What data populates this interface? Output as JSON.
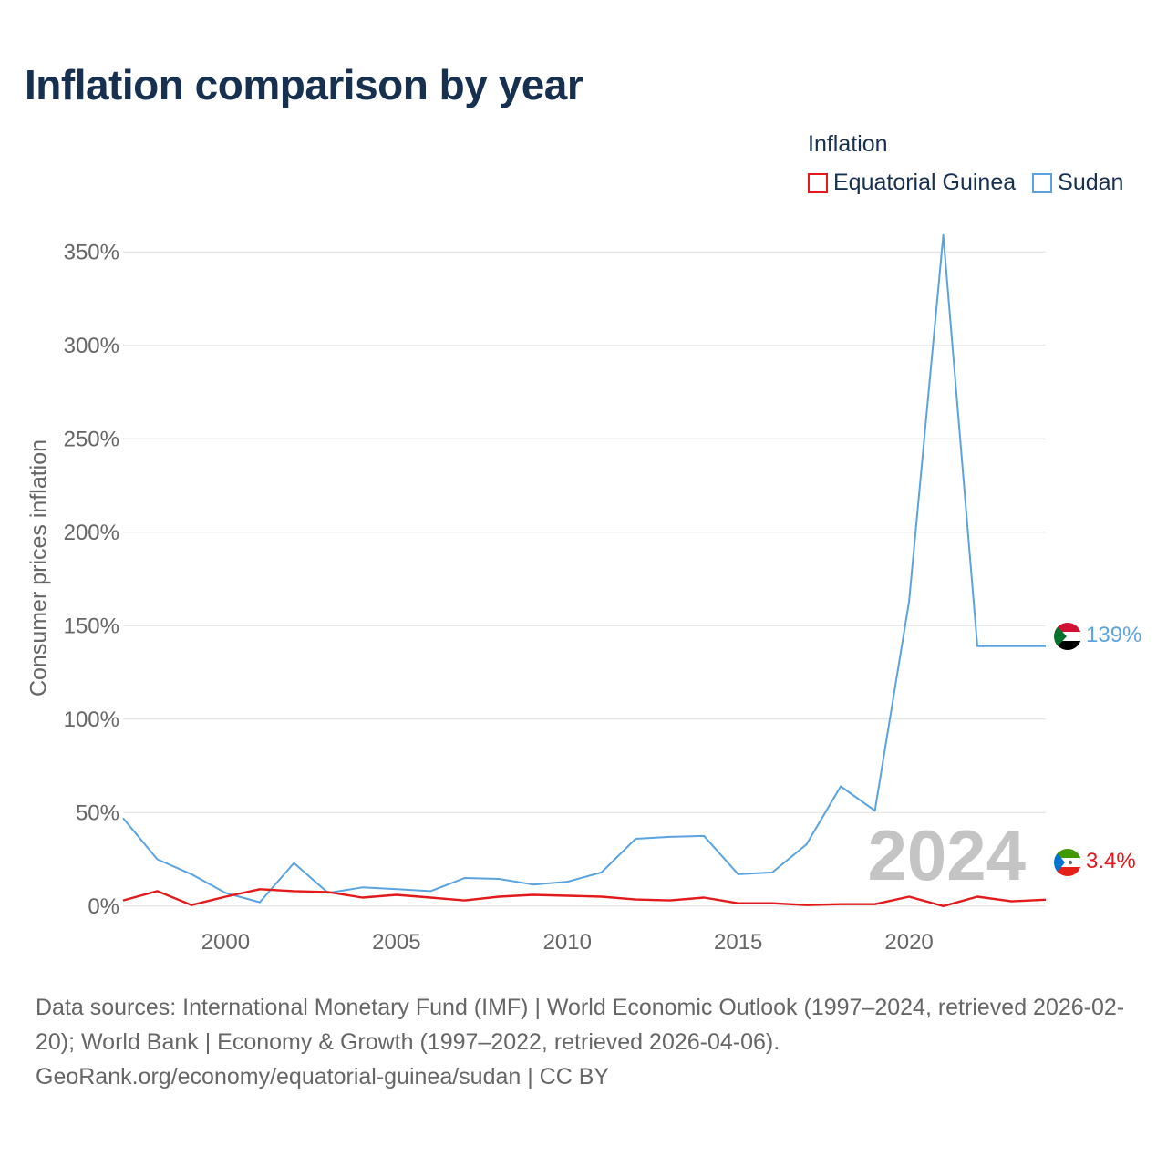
{
  "title": "Inflation comparison by year",
  "legend": {
    "title": "Inflation",
    "items": [
      {
        "label": "Equatorial Guinea",
        "color": "#e31a1c"
      },
      {
        "label": "Sudan",
        "color": "#5ba3e0"
      }
    ]
  },
  "source": {
    "line1": "Data sources: International Monetary Fund (IMF) | World Economic Outlook (1997–2024, retrieved 2026-02-20); World Bank | Economy & Growth (1997–2022, retrieved 2026-04-06).",
    "line2": "GeoRank.org/economy/equatorial-guinea/sudan | CC BY"
  },
  "chart_data": {
    "type": "line",
    "title": "Inflation comparison by year",
    "xlabel": "",
    "ylabel": "Consumer prices inflation",
    "xlim": [
      1997,
      2024
    ],
    "ylim": [
      -25,
      375
    ],
    "yticks": [
      0,
      50,
      100,
      150,
      200,
      250,
      300,
      350
    ],
    "ytick_labels": [
      "0%",
      "50%",
      "100%",
      "150%",
      "200%",
      "250%",
      "300%",
      "350%"
    ],
    "xticks": [
      2000,
      2005,
      2010,
      2015,
      2020
    ],
    "xtick_labels": [
      "2000",
      "2005",
      "2010",
      "2015",
      "2020"
    ],
    "grid": true,
    "year_watermark": "2024",
    "x": [
      1997,
      1998,
      1999,
      2000,
      2001,
      2002,
      2003,
      2004,
      2005,
      2006,
      2007,
      2008,
      2009,
      2010,
      2011,
      2012,
      2013,
      2014,
      2015,
      2016,
      2017,
      2018,
      2019,
      2020,
      2021,
      2022,
      2023,
      2024
    ],
    "series": [
      {
        "name": "Sudan",
        "color": "#5ba3e0",
        "end_label": "139%",
        "values": [
          47,
          25,
          17,
          7,
          2,
          23,
          7,
          10,
          9,
          8,
          15,
          14.5,
          11.5,
          13,
          18,
          36,
          37,
          37.5,
          17,
          18,
          33,
          64,
          51,
          163,
          359,
          139,
          139,
          139
        ]
      },
      {
        "name": "Equatorial Guinea",
        "color": "#e31a1c",
        "end_label": "3.4%",
        "values": [
          3,
          8,
          0.5,
          5,
          9,
          8,
          7.5,
          4.5,
          6,
          4.5,
          3,
          5,
          6,
          5.5,
          5,
          3.5,
          3,
          4.5,
          1.5,
          1.5,
          0.5,
          1,
          1,
          5,
          0,
          5,
          2.5,
          3.4
        ]
      }
    ]
  }
}
